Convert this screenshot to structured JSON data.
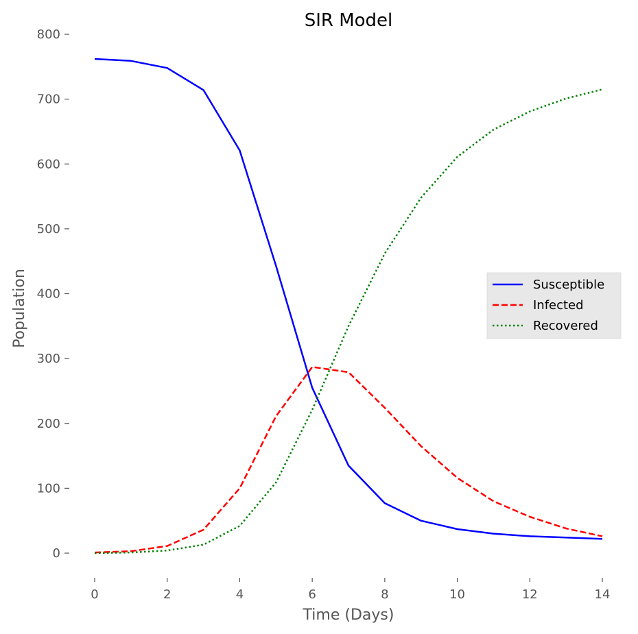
{
  "chart_data": {
    "type": "line",
    "title": "SIR Model",
    "xlabel": "Time (Days)",
    "ylabel": "Population",
    "xlim": [
      0,
      14
    ],
    "ylim": [
      0,
      800
    ],
    "x_ticks": [
      0,
      2,
      4,
      6,
      8,
      10,
      12,
      14
    ],
    "y_ticks": [
      0,
      100,
      200,
      300,
      400,
      500,
      600,
      700,
      800
    ],
    "grid": false,
    "legend_position": "center-right",
    "x": [
      0,
      1,
      2,
      3,
      4,
      5,
      6,
      7,
      8,
      9,
      10,
      11,
      12,
      13,
      14
    ],
    "series": [
      {
        "name": "Susceptible",
        "color": "#0000ff",
        "line_style": "solid",
        "values": [
          762,
          759,
          748,
          714,
          621,
          443,
          255,
          135,
          77,
          50,
          37,
          30,
          26,
          24,
          22
        ]
      },
      {
        "name": "Infected",
        "color": "#ff0000",
        "line_style": "dashed",
        "values": [
          1,
          3,
          11,
          36,
          100,
          211,
          287,
          279,
          224,
          165,
          116,
          80,
          56,
          38,
          26
        ]
      },
      {
        "name": "Recovered",
        "color": "#008000",
        "line_style": "dotted",
        "values": [
          0,
          1,
          4,
          13,
          42,
          109,
          221,
          350,
          462,
          548,
          611,
          653,
          681,
          701,
          715
        ]
      }
    ]
  }
}
